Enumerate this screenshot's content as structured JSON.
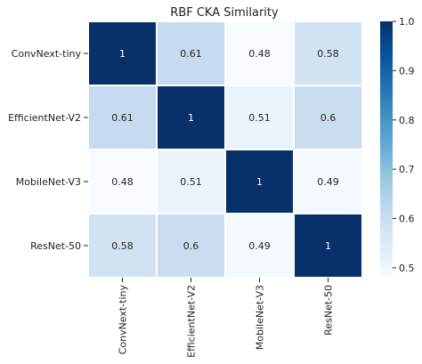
{
  "chart_data": {
    "type": "heatmap",
    "title": "RBF CKA Similarity",
    "rows": [
      "ConvNext-tiny",
      "EfficientNet-V2",
      "MobileNet-V3",
      "ResNet-50"
    ],
    "columns": [
      "ConvNext-tiny",
      "EfficientNet-V2",
      "MobileNet-V3",
      "ResNet-50"
    ],
    "values": [
      [
        1,
        0.61,
        0.48,
        0.58
      ],
      [
        0.61,
        1,
        0.51,
        0.6
      ],
      [
        0.48,
        0.51,
        1,
        0.49
      ],
      [
        0.58,
        0.6,
        0.49,
        1
      ]
    ],
    "value_labels": [
      [
        "1",
        "0.61",
        "0.48",
        "0.58"
      ],
      [
        "0.61",
        "1",
        "0.51",
        "0.6"
      ],
      [
        "0.48",
        "0.51",
        "1",
        "0.49"
      ],
      [
        "0.58",
        "0.6",
        "0.49",
        "1"
      ]
    ],
    "colorbar": {
      "ticks": [
        "0.5",
        "0.6",
        "0.7",
        "0.8",
        "0.9",
        "1.0"
      ],
      "tick_values": [
        0.5,
        0.6,
        0.7,
        0.8,
        0.9,
        1.0
      ],
      "vmin": 0.48,
      "vmax": 1.0
    },
    "colormap": [
      "#f7fbff",
      "#deebf7",
      "#c6dbef",
      "#9ecae1",
      "#6baed6",
      "#4292c6",
      "#2171b5",
      "#08519c",
      "#08306b"
    ],
    "grid": true
  }
}
